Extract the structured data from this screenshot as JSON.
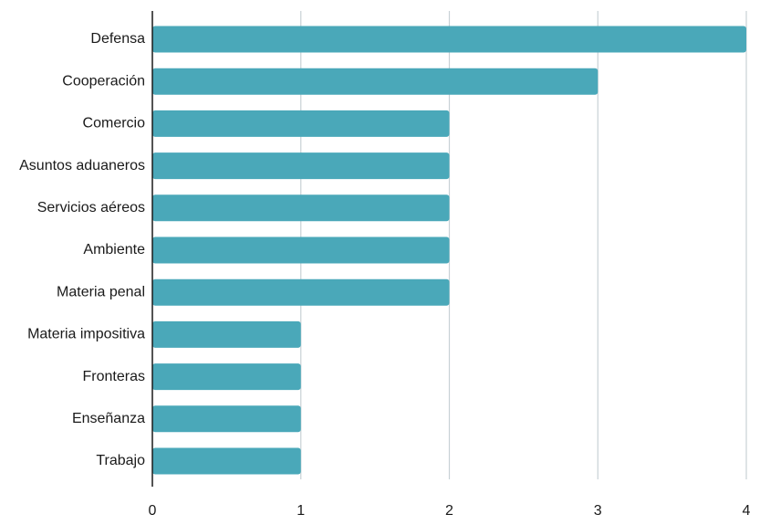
{
  "chart_data": {
    "type": "bar",
    "orientation": "horizontal",
    "title": "",
    "xlabel": "",
    "ylabel": "",
    "categories": [
      "Defensa",
      "Cooperación",
      "Comercio",
      "Asuntos aduaneros",
      "Servicios aéreos",
      "Ambiente",
      "Materia penal",
      "Materia impositiva",
      "Fronteras",
      "Enseñanza",
      "Trabajo"
    ],
    "values": [
      4,
      3,
      2,
      2,
      2,
      2,
      2,
      1,
      1,
      1,
      1
    ],
    "xlim": [
      0,
      4
    ],
    "xticks": [
      "0",
      "1",
      "2",
      "3",
      "4"
    ],
    "grid": "vertical",
    "legend": "none",
    "colors": {
      "bar": "#4aa8b9",
      "grid": "#c8d2d6",
      "axis": "#1a1a1a"
    }
  }
}
